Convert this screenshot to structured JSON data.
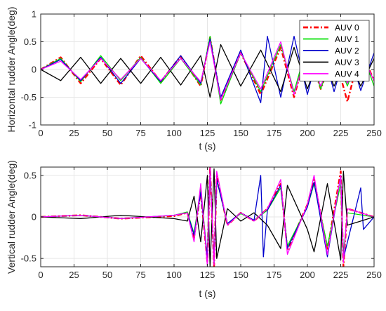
{
  "chart_data": [
    {
      "type": "line",
      "xlabel": "t (s)",
      "ylabel": "Horizontal rudder Angle(deg)",
      "xlim": [
        0,
        250
      ],
      "ylim": [
        -1,
        1
      ],
      "xticks": [
        0,
        25,
        50,
        75,
        100,
        125,
        150,
        175,
        200,
        225,
        250
      ],
      "xtick_labels": [
        "0",
        "25",
        "50",
        "75",
        "100",
        "125",
        "150",
        "175",
        "200",
        "225",
        "250"
      ],
      "yticks": [
        1,
        0.5,
        0,
        -0.5,
        -1
      ],
      "ytick_labels": [
        "1",
        "0.5",
        "0",
        "-0.5",
        "-1"
      ],
      "grid": true,
      "legend": "top-right",
      "series": [
        {
          "name": "AUV 0",
          "color": "#ff0000",
          "style": "dashdot",
          "x": [
            0,
            15,
            30,
            45,
            60,
            75,
            90,
            105,
            120,
            127,
            135,
            150,
            165,
            180,
            190,
            200,
            210,
            220,
            230,
            240,
            250
          ],
          "values": [
            0,
            0.22,
            -0.25,
            0.2,
            -0.28,
            0.25,
            -0.22,
            0.24,
            -0.3,
            0.58,
            -0.55,
            0.3,
            -0.45,
            0.4,
            -0.5,
            0.4,
            -0.35,
            0.3,
            -0.58,
            0.35,
            -0.2
          ]
        },
        {
          "name": "AUV 1",
          "color": "#00e000",
          "style": "solid",
          "x": [
            0,
            15,
            30,
            45,
            60,
            75,
            90,
            105,
            120,
            127,
            135,
            150,
            165,
            180,
            190,
            200,
            210,
            220,
            230,
            240,
            250
          ],
          "values": [
            0,
            0.2,
            -0.22,
            0.25,
            -0.2,
            0.22,
            -0.25,
            0.2,
            -0.28,
            0.6,
            -0.62,
            0.3,
            -0.4,
            0.45,
            -0.4,
            0.45,
            -0.35,
            0.32,
            -0.3,
            0.38,
            -0.3
          ]
        },
        {
          "name": "AUV 2",
          "color": "#0000cc",
          "style": "solid",
          "x": [
            0,
            15,
            30,
            45,
            60,
            75,
            90,
            105,
            120,
            127,
            135,
            150,
            165,
            170,
            180,
            190,
            200,
            210,
            220,
            230,
            240,
            250
          ],
          "values": [
            0,
            0.18,
            -0.2,
            0.22,
            -0.25,
            0.2,
            -0.22,
            0.25,
            -0.25,
            0.55,
            -0.5,
            0.35,
            -0.6,
            0.6,
            -0.5,
            0.6,
            -0.45,
            0.5,
            -0.4,
            0.42,
            -0.38,
            0.3
          ]
        },
        {
          "name": "AUV 3",
          "color": "#000000",
          "style": "solid",
          "x": [
            0,
            15,
            30,
            45,
            60,
            75,
            90,
            105,
            120,
            127,
            135,
            150,
            165,
            180,
            190,
            200,
            210,
            220,
            230,
            240,
            250
          ],
          "values": [
            0,
            -0.2,
            0.22,
            -0.25,
            0.2,
            -0.25,
            0.22,
            -0.28,
            0.25,
            -0.5,
            0.45,
            -0.3,
            0.35,
            -0.4,
            0.4,
            -0.35,
            0.3,
            -0.3,
            0.25,
            -0.3,
            0.2
          ]
        },
        {
          "name": "AUV 4",
          "color": "#ff00ff",
          "style": "solid",
          "x": [
            0,
            15,
            30,
            45,
            60,
            75,
            90,
            105,
            120,
            127,
            135,
            150,
            165,
            180,
            190,
            200,
            210,
            220,
            230,
            240,
            250
          ],
          "values": [
            0,
            0.15,
            -0.18,
            0.2,
            -0.18,
            0.2,
            -0.2,
            0.2,
            -0.22,
            0.5,
            -0.55,
            0.3,
            -0.35,
            0.5,
            -0.45,
            0.35,
            -0.3,
            0.3,
            -0.25,
            0.3,
            -0.2
          ]
        }
      ]
    },
    {
      "type": "line",
      "xlabel": "t (s)",
      "ylabel": "Vertical rudder Angle(deg)",
      "xlim": [
        0,
        250
      ],
      "ylim": [
        -0.6,
        0.6
      ],
      "xticks": [
        0,
        25,
        50,
        75,
        100,
        125,
        150,
        175,
        200,
        225,
        250
      ],
      "xtick_labels": [
        "0",
        "25",
        "50",
        "75",
        "100",
        "125",
        "150",
        "175",
        "200",
        "225",
        "250"
      ],
      "yticks": [
        0.5,
        0,
        -0.5
      ],
      "ytick_labels": [
        "0.5",
        "0",
        "-0.5"
      ],
      "grid": true,
      "series": [
        {
          "name": "AUV 0",
          "color": "#ff0000",
          "style": "dashdot",
          "x": [
            0,
            30,
            60,
            100,
            110,
            115,
            120,
            125,
            127,
            130,
            132,
            140,
            150,
            160,
            170,
            180,
            185,
            200,
            205,
            215,
            225,
            227,
            230,
            250
          ],
          "values": [
            0,
            0.02,
            -0.02,
            0.01,
            0.05,
            -0.25,
            0.3,
            -0.55,
            0.6,
            -0.6,
            0.5,
            -0.1,
            0.05,
            -0.05,
            0.1,
            0.4,
            -0.4,
            0.15,
            0.45,
            -0.4,
            0.55,
            -0.6,
            0.1,
            0
          ]
        },
        {
          "name": "AUV 1",
          "color": "#00e000",
          "style": "solid",
          "x": [
            0,
            30,
            60,
            100,
            110,
            115,
            120,
            125,
            127,
            130,
            132,
            140,
            150,
            160,
            170,
            180,
            185,
            200,
            205,
            215,
            225,
            227,
            230,
            250
          ],
          "values": [
            0,
            0.02,
            -0.02,
            0.02,
            0.06,
            -0.2,
            0.35,
            -0.5,
            0.6,
            -0.55,
            0.45,
            -0.08,
            0.04,
            -0.04,
            0.08,
            0.35,
            -0.35,
            0.12,
            0.4,
            -0.35,
            0.4,
            -0.45,
            0.05,
            0
          ]
        },
        {
          "name": "AUV 2",
          "color": "#0000cc",
          "style": "solid",
          "x": [
            0,
            30,
            60,
            100,
            110,
            115,
            120,
            125,
            127,
            130,
            132,
            140,
            150,
            160,
            165,
            167,
            170,
            180,
            185,
            200,
            205,
            215,
            225,
            227,
            240,
            242,
            250
          ],
          "values": [
            0,
            0.02,
            -0.02,
            0.02,
            0.05,
            -0.22,
            0.3,
            -0.5,
            0.55,
            -0.55,
            0.45,
            -0.08,
            0.05,
            -0.04,
            0.5,
            -0.48,
            0.08,
            0.38,
            -0.38,
            0.12,
            0.42,
            -0.48,
            0.5,
            -0.5,
            0.35,
            -0.15,
            0
          ]
        },
        {
          "name": "AUV 3",
          "color": "#000000",
          "style": "solid",
          "x": [
            0,
            30,
            60,
            100,
            110,
            115,
            120,
            125,
            127,
            130,
            132,
            140,
            150,
            160,
            170,
            180,
            185,
            200,
            205,
            215,
            225,
            227,
            230,
            250
          ],
          "values": [
            0,
            -0.02,
            0.02,
            -0.02,
            -0.05,
            0.25,
            -0.3,
            0.5,
            -0.6,
            0.58,
            -0.5,
            0.1,
            -0.05,
            0.05,
            -0.1,
            -0.38,
            0.38,
            -0.15,
            -0.42,
            0.4,
            -0.52,
            0.55,
            -0.1,
            0
          ]
        },
        {
          "name": "AUV 4",
          "color": "#ff00ff",
          "style": "solid",
          "x": [
            0,
            30,
            60,
            100,
            110,
            115,
            120,
            125,
            127,
            130,
            132,
            140,
            150,
            160,
            170,
            180,
            185,
            200,
            205,
            215,
            225,
            227,
            230,
            250
          ],
          "values": [
            0,
            0.02,
            -0.02,
            0.02,
            0.05,
            -0.3,
            0.4,
            -0.6,
            0.6,
            -0.58,
            0.55,
            -0.1,
            0.05,
            -0.05,
            0.1,
            0.45,
            -0.45,
            0.15,
            0.5,
            -0.45,
            0.5,
            -0.55,
            0.1,
            0
          ]
        }
      ]
    }
  ]
}
